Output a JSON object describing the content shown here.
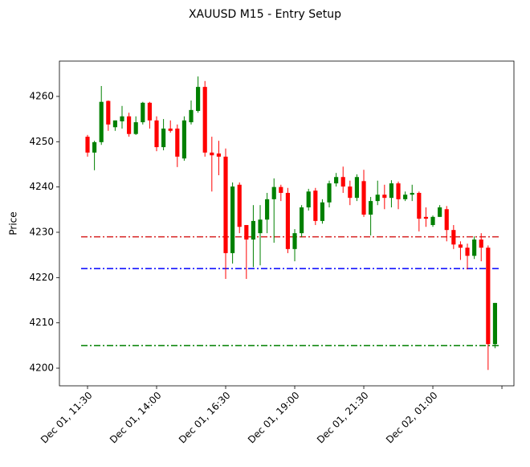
{
  "chart_data": {
    "type": "candlestick",
    "title": "XAUUSD M15 - Entry Setup",
    "y_label": "Price",
    "up_color": "green",
    "down_color": "red",
    "open": [
      4251.1,
      4247.6,
      4249.9,
      4259.0,
      4253.2,
      4254.5,
      4255.6,
      4251.7,
      4254.3,
      4258.6,
      4254.7,
      4248.8,
      4252.9,
      4252.9,
      4246.3,
      4254.3,
      4256.8,
      4262.1,
      4247.6,
      4247.4,
      4246.7,
      4225.4,
      4240.5,
      4231.6,
      4228.4,
      4229.8,
      4232.8,
      4237.3,
      4240.0,
      4238.7,
      4226.3,
      4229.8,
      4235.5,
      4239.2,
      4232.5,
      4236.6,
      4240.8,
      4242.2,
      4240.1,
      4237.6,
      4241.3,
      4233.9,
      4236.9,
      4238.3,
      4237.6,
      4240.8,
      4237.3,
      4238.3,
      4238.7,
      4233.4,
      4231.6,
      4233.4,
      4235.1,
      4230.5,
      4227.3,
      4226.6,
      4224.8,
      4228.4,
      4226.6,
      4205.3
    ],
    "high": [
      4251.5,
      4250.2,
      4262.3,
      4259.1,
      4254.7,
      4257.9,
      4256.4,
      4255.6,
      4258.8,
      4258.8,
      4255.6,
      4255.0,
      4254.7,
      4253.8,
      4255.6,
      4259.1,
      4264.4,
      4263.4,
      4251.1,
      4250.2,
      4248.5,
      4241.0,
      4241.0,
      4231.6,
      4236.0,
      4236.0,
      4238.7,
      4241.9,
      4240.5,
      4239.8,
      4230.7,
      4236.0,
      4239.6,
      4239.8,
      4237.3,
      4241.4,
      4243.1,
      4244.5,
      4241.4,
      4242.8,
      4243.8,
      4237.8,
      4241.4,
      4240.5,
      4241.5,
      4241.2,
      4239.0,
      4240.5,
      4239.0,
      4235.5,
      4233.7,
      4236.0,
      4235.8,
      4231.6,
      4228.0,
      4227.5,
      4229.1,
      4229.8,
      4227.1,
      4214.4
    ],
    "low": [
      4246.7,
      4243.7,
      4249.3,
      4252.4,
      4252.4,
      4252.9,
      4251.1,
      4251.5,
      4253.8,
      4252.9,
      4247.9,
      4248.1,
      4252.0,
      4244.4,
      4245.8,
      4253.8,
      4256.4,
      4246.7,
      4239.0,
      4242.6,
      4219.7,
      4223.1,
      4229.8,
      4219.7,
      4222.3,
      4222.7,
      4229.8,
      4227.7,
      4236.9,
      4225.4,
      4223.6,
      4228.9,
      4234.8,
      4231.6,
      4231.9,
      4235.5,
      4240.1,
      4238.7,
      4236.0,
      4236.9,
      4233.4,
      4229.3,
      4236.0,
      4235.1,
      4235.5,
      4235.1,
      4236.9,
      4236.9,
      4230.2,
      4231.2,
      4231.2,
      4233.4,
      4228.0,
      4226.3,
      4223.9,
      4221.8,
      4224.1,
      4223.6,
      4199.6,
      4204.4
    ],
    "close": [
      4247.6,
      4249.9,
      4258.8,
      4253.8,
      4254.7,
      4255.6,
      4251.7,
      4254.3,
      4258.6,
      4254.7,
      4248.8,
      4252.9,
      4252.4,
      4246.7,
      4254.7,
      4257.0,
      4262.1,
      4247.6,
      4247.0,
      4246.7,
      4225.4,
      4240.1,
      4231.2,
      4228.4,
      4232.5,
      4232.8,
      4237.3,
      4240.0,
      4238.7,
      4226.3,
      4229.8,
      4235.5,
      4239.0,
      4232.5,
      4236.6,
      4240.8,
      4242.2,
      4240.1,
      4237.6,
      4242.2,
      4233.9,
      4236.9,
      4238.3,
      4237.6,
      4240.8,
      4237.3,
      4238.3,
      4238.7,
      4233.0,
      4233.0,
      4233.4,
      4235.5,
      4230.5,
      4227.3,
      4226.6,
      4224.8,
      4228.4,
      4226.6,
      4205.3,
      4214.4
    ],
    "levels": [
      {
        "value": 4229,
        "color": "#d62020"
      },
      {
        "value": 4222,
        "color": "blue"
      },
      {
        "value": 4205,
        "color": "green"
      }
    ],
    "xlim": [
      -4.07,
      61.74
    ],
    "xticks": [
      {
        "value": 0,
        "label": "Dec 01, 11:30"
      },
      {
        "value": 10,
        "label": "Dec 01, 14:00"
      },
      {
        "value": 20,
        "label": "Dec 01, 16:30"
      },
      {
        "value": 30,
        "label": "Dec 01, 19:00"
      },
      {
        "value": 40,
        "label": "Dec 01, 21:30"
      },
      {
        "value": 50,
        "label": "Dec 02, 01:00"
      },
      {
        "value": 60,
        "label": null
      }
    ],
    "ylim": [
      4196.1,
      4267.8
    ],
    "yticks": [
      4200,
      4210,
      4220,
      4230,
      4240,
      4250,
      4260
    ]
  }
}
